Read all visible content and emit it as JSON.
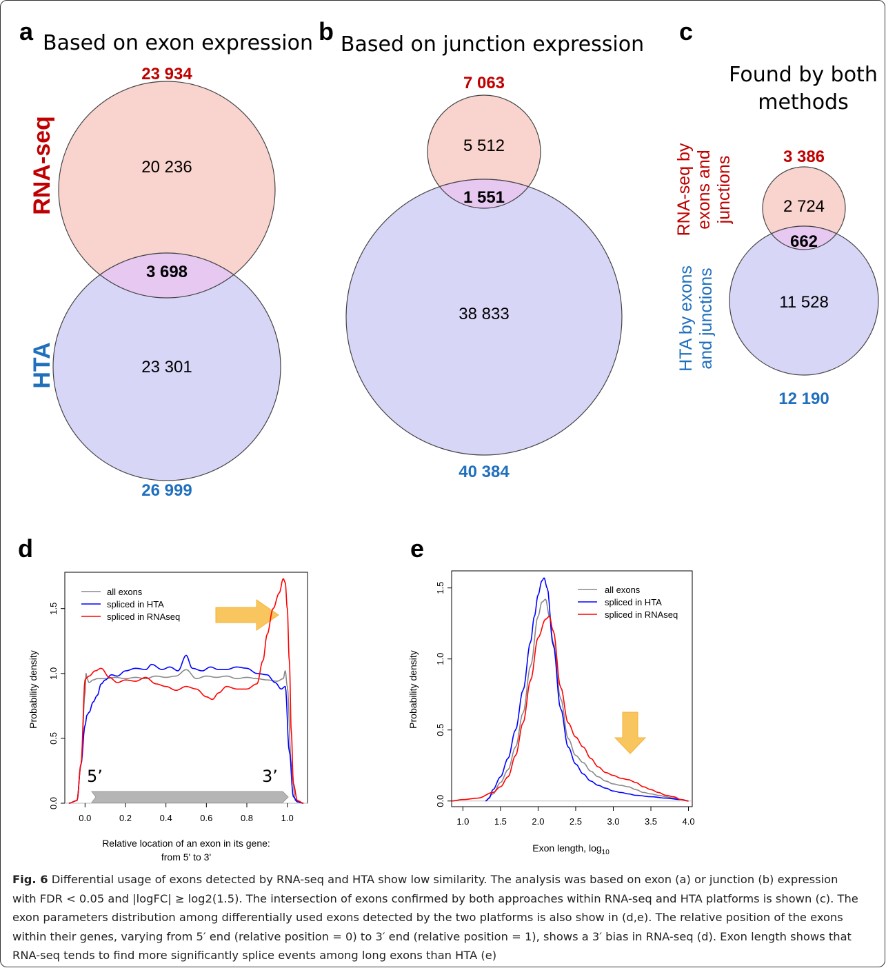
{
  "panels": {
    "a": {
      "letter": "a",
      "title": "Based on exon expression",
      "left_label": "RNA-seq",
      "bottom_label": "HTA",
      "top_total": "23 934",
      "bottom_total": "26 999",
      "only_top": "20 236",
      "intersection": "3 698",
      "only_bottom": "23 301",
      "colors": {
        "top": "#c00000",
        "bottom": "#1f6fbd"
      }
    },
    "b": {
      "letter": "b",
      "title": "Based on junction expression",
      "top_total": "7 063",
      "bottom_total": "40 384",
      "only_top": "5 512",
      "intersection": "1 551",
      "only_bottom": "38 833"
    },
    "c": {
      "letter": "c",
      "title_line1": "Found by both",
      "title_line2": "methods",
      "left_top_line1": "RNA-seq by",
      "left_top_line2": "exons and",
      "left_top_line3": "junctions",
      "left_bottom_line1": "HTA by exons",
      "left_bottom_line2": "and junctions",
      "top_total": "3 386",
      "bottom_total": "12 190",
      "only_top": "2 724",
      "intersection": "662",
      "only_bottom": "11 528"
    },
    "d": {
      "letter": "d",
      "five_prime": "5’",
      "three_prime": "3’"
    },
    "e": {
      "letter": "e"
    }
  },
  "chart_data": [
    {
      "panel": "d",
      "type": "line",
      "xlabel_line1": "Relative location of an exon in its gene:",
      "xlabel_line2": "from 5' to 3'",
      "ylabel": "Probability density",
      "xlim": [
        -0.1,
        1.1
      ],
      "ylim": [
        0,
        1.78
      ],
      "xticks": [
        0.0,
        0.2,
        0.4,
        0.6,
        0.8,
        1.0
      ],
      "xtick_labels": [
        "0.0",
        "0.2",
        "0.4",
        "0.6",
        "0.8",
        "1.0"
      ],
      "yticks": [
        0.0,
        0.5,
        1.0,
        1.5
      ],
      "ytick_labels": [
        "0.0",
        "0.5",
        "1.0",
        "1.5"
      ],
      "legend_position": "top-left",
      "series": [
        {
          "name": "all exons",
          "color": "#888888",
          "x": [
            -0.08,
            -0.04,
            -0.02,
            0.0,
            0.005,
            0.01,
            0.02,
            0.04,
            0.06,
            0.1,
            0.15,
            0.2,
            0.25,
            0.3,
            0.35,
            0.4,
            0.45,
            0.5,
            0.55,
            0.6,
            0.65,
            0.7,
            0.75,
            0.8,
            0.85,
            0.9,
            0.95,
            0.98,
            0.99,
            1.0,
            1.02,
            1.04,
            1.08
          ],
          "y": [
            0.0,
            0.02,
            0.3,
            0.85,
            1.0,
            0.96,
            0.93,
            0.95,
            0.96,
            0.96,
            0.97,
            0.96,
            0.97,
            0.96,
            0.98,
            0.97,
            0.98,
            1.03,
            0.96,
            0.98,
            0.97,
            0.98,
            0.96,
            0.97,
            0.96,
            0.95,
            0.94,
            0.96,
            1.02,
            0.9,
            0.3,
            0.02,
            0.0
          ]
        },
        {
          "name": "spliced in HTA",
          "color": "#0000ff",
          "x": [
            -0.08,
            -0.04,
            -0.02,
            0.0,
            0.01,
            0.02,
            0.04,
            0.06,
            0.08,
            0.1,
            0.13,
            0.16,
            0.2,
            0.25,
            0.3,
            0.33,
            0.38,
            0.42,
            0.46,
            0.5,
            0.53,
            0.58,
            0.62,
            0.66,
            0.7,
            0.75,
            0.8,
            0.85,
            0.9,
            0.94,
            0.97,
            0.99,
            1.01,
            1.03,
            1.05,
            1.08
          ],
          "y": [
            0.0,
            0.02,
            0.3,
            0.6,
            0.68,
            0.7,
            0.78,
            0.83,
            0.92,
            0.95,
            0.99,
            0.98,
            1.02,
            1.04,
            1.03,
            1.07,
            1.03,
            1.05,
            1.02,
            1.14,
            1.04,
            1.02,
            1.05,
            1.03,
            1.03,
            1.05,
            1.04,
            1.0,
            0.99,
            0.93,
            0.88,
            0.9,
            0.4,
            0.05,
            0.01,
            0.0
          ]
        },
        {
          "name": "spliced in RNAseq",
          "color": "#ff0000",
          "x": [
            -0.08,
            -0.04,
            -0.02,
            0.0,
            0.01,
            0.02,
            0.05,
            0.08,
            0.12,
            0.16,
            0.2,
            0.25,
            0.3,
            0.35,
            0.4,
            0.45,
            0.5,
            0.55,
            0.6,
            0.63,
            0.66,
            0.7,
            0.75,
            0.8,
            0.85,
            0.88,
            0.9,
            0.93,
            0.96,
            0.98,
            0.99,
            1.0,
            1.01,
            1.02,
            1.03,
            1.05,
            1.08
          ],
          "y": [
            0.0,
            0.02,
            0.3,
            0.95,
            0.97,
            0.98,
            1.02,
            1.04,
            0.97,
            0.93,
            0.95,
            0.94,
            0.97,
            0.92,
            0.9,
            0.87,
            0.9,
            0.88,
            0.82,
            0.8,
            0.85,
            0.9,
            0.88,
            0.88,
            0.92,
            1.1,
            1.3,
            1.5,
            1.62,
            1.73,
            1.7,
            1.5,
            1.1,
            0.55,
            0.15,
            0.02,
            0.0
          ]
        }
      ]
    },
    {
      "panel": "e",
      "type": "line",
      "xlabel": "Exon length, log",
      "xlabel_sub": "10",
      "ylabel": "Probability density",
      "xlim": [
        0.85,
        4.05
      ],
      "ylim": [
        -0.04,
        1.62
      ],
      "xticks": [
        1.0,
        1.5,
        2.0,
        2.5,
        3.0,
        3.5,
        4.0
      ],
      "xtick_labels": [
        "1.0",
        "1.5",
        "2.0",
        "2.5",
        "3.0",
        "3.5",
        "4.0"
      ],
      "yticks": [
        0.0,
        0.5,
        1.0,
        1.5
      ],
      "ytick_labels": [
        "0.0",
        "0.5",
        "1.0",
        "1.5"
      ],
      "legend_position": "top-right",
      "series": [
        {
          "name": "all exons",
          "color": "#888888",
          "x": [
            1.3,
            1.4,
            1.5,
            1.6,
            1.7,
            1.8,
            1.9,
            2.0,
            2.05,
            2.1,
            2.15,
            2.2,
            2.3,
            2.4,
            2.5,
            2.6,
            2.7,
            2.8,
            2.9,
            3.0,
            3.1,
            3.2,
            3.3,
            3.4,
            3.5,
            3.6,
            3.7,
            3.8,
            3.9,
            4.0
          ],
          "y": [
            0.0,
            0.05,
            0.13,
            0.22,
            0.38,
            0.62,
            0.95,
            1.3,
            1.4,
            1.42,
            1.3,
            1.12,
            0.72,
            0.44,
            0.32,
            0.27,
            0.21,
            0.17,
            0.14,
            0.12,
            0.11,
            0.1,
            0.08,
            0.06,
            0.05,
            0.04,
            0.03,
            0.02,
            0.01,
            0.0
          ]
        },
        {
          "name": "spliced in HTA",
          "color": "#0000ff",
          "x": [
            1.3,
            1.35,
            1.4,
            1.5,
            1.6,
            1.7,
            1.8,
            1.9,
            1.95,
            2.0,
            2.05,
            2.08,
            2.12,
            2.2,
            2.3,
            2.4,
            2.5,
            2.6,
            2.7,
            2.8,
            2.9,
            3.0,
            3.1,
            3.2,
            3.3,
            3.5,
            3.7,
            3.9,
            4.0
          ],
          "y": [
            0.0,
            0.02,
            0.08,
            0.17,
            0.3,
            0.5,
            0.78,
            1.12,
            1.3,
            1.45,
            1.55,
            1.57,
            1.5,
            1.1,
            0.65,
            0.38,
            0.26,
            0.19,
            0.14,
            0.11,
            0.09,
            0.07,
            0.06,
            0.05,
            0.04,
            0.03,
            0.02,
            0.01,
            0.0
          ]
        },
        {
          "name": "spliced in RNAseq",
          "color": "#ff0000",
          "x": [
            0.85,
            1.0,
            1.2,
            1.4,
            1.5,
            1.6,
            1.7,
            1.8,
            1.9,
            2.0,
            2.1,
            2.15,
            2.2,
            2.3,
            2.4,
            2.5,
            2.6,
            2.7,
            2.8,
            2.9,
            3.0,
            3.1,
            3.2,
            3.3,
            3.4,
            3.5,
            3.6,
            3.7,
            3.8,
            3.9,
            4.0
          ],
          "y": [
            0.0,
            0.01,
            0.02,
            0.06,
            0.1,
            0.17,
            0.32,
            0.55,
            0.85,
            1.15,
            1.28,
            1.3,
            1.2,
            0.8,
            0.55,
            0.45,
            0.38,
            0.3,
            0.24,
            0.2,
            0.18,
            0.16,
            0.15,
            0.13,
            0.1,
            0.08,
            0.06,
            0.04,
            0.03,
            0.01,
            0.0
          ]
        }
      ]
    }
  ],
  "caption": {
    "label": "Fig. 6",
    "lines": [
      " Differential usage of exons detected by RNA-seq and HTA show low similarity. The analysis was based on exon (a) or junction (b) expression",
      "with FDR < 0.05 and |logFC| ≥ log2(1.5). The intersection of exons confirmed by both approaches within RNA-seq and HTA platforms is shown (c). The",
      "exon parameters distribution among differentially used exons detected by the two platforms is also show in (d,e). The relative position of the exons",
      "within their genes, varying from 5′ end (relative position = 0) to 3′ end (relative position = 1), shows a 3′ bias in RNA-seq (d). Exon length shows that",
      "RNA-seq tends to find more significantly splice events among long exons than HTA (e)"
    ]
  }
}
